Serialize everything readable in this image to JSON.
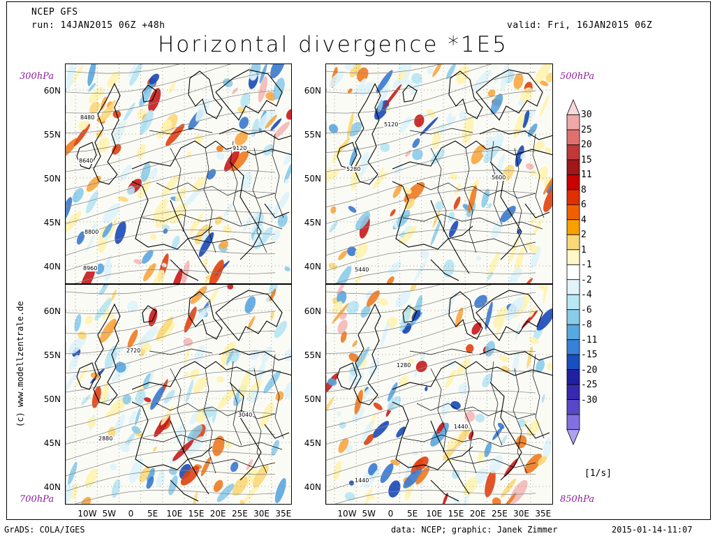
{
  "header": {
    "model": "NCEP GFS",
    "run": "run: 14JAN2015 06Z +48h",
    "valid": "valid: Fri, 16JAN2015 06Z",
    "title": "Horizontal divergence *1E5"
  },
  "panels": [
    {
      "id": "p300",
      "level": "300hPa",
      "contour_labels": [
        "8480",
        "8640",
        "9120",
        "8800",
        "8960"
      ]
    },
    {
      "id": "p500",
      "level": "500hPa",
      "contour_labels": [
        "5120",
        "5280",
        "5600",
        "5440"
      ]
    },
    {
      "id": "p700",
      "level": "700hPa",
      "contour_labels": [
        "2720",
        "3040",
        "2880"
      ]
    },
    {
      "id": "p850",
      "level": "850hPa",
      "contour_labels": [
        "1280",
        "1440",
        "1440"
      ]
    }
  ],
  "axes": {
    "lat_ticks": [
      "60N",
      "55N",
      "50N",
      "45N",
      "40N"
    ],
    "lon_ticks": [
      "10W",
      "5W",
      "0",
      "5E",
      "10E",
      "15E",
      "20E",
      "25E",
      "30E",
      "35E"
    ]
  },
  "colorbar": {
    "labels": [
      "30",
      "25",
      "20",
      "15",
      "11",
      "8",
      "6",
      "4",
      "2",
      "1",
      "-1",
      "-2",
      "-4",
      "-6",
      "-8",
      "-11",
      "-15",
      "-20",
      "-25",
      "-30"
    ],
    "colors": [
      "#f8d8d8",
      "#f0a8a8",
      "#e07070",
      "#c03838",
      "#a01818",
      "#c80000",
      "#e03000",
      "#f06000",
      "#f8a000",
      "#f8d878",
      "#fff8c8",
      "#ffffff",
      "#e0f4fa",
      "#b8e8f4",
      "#88cce8",
      "#58a8e0",
      "#3880d8",
      "#1850c0",
      "#2020a0",
      "#3828b0",
      "#5848c8",
      "#8070e0",
      "#b0a0f0"
    ],
    "unit": "[1/s]"
  },
  "credits": {
    "copyright": "(c) www.modellzentrale.de",
    "grads": "GrADS: COLA/IGES",
    "data": "data: NCEP; graphic: Janek Zimmer",
    "timestamp": "2015-01-14-11:07"
  }
}
